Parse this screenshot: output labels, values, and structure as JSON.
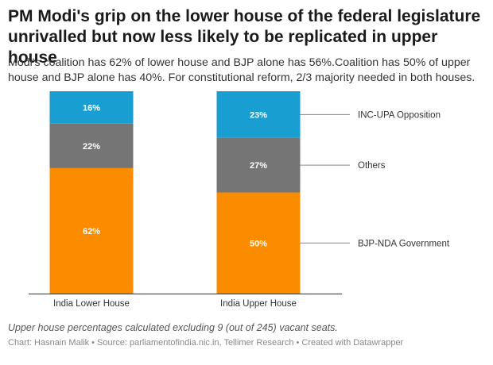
{
  "header": {
    "title": "PM Modi's grip on the lower house of the federal legislature unrivalled but now less likely to be replicated in upper house",
    "subtitle": "Modi's coalition has 62% of lower house and BJP alone has 56%.Coalition has 50% of upper house and BJP alone has 40%. For constitutional reform, 2/3 majority needed in both houses."
  },
  "chart_data": {
    "type": "bar",
    "stacked": true,
    "categories": [
      "India Lower House",
      "India Upper House"
    ],
    "series": [
      {
        "name": "BJP-NDA Government",
        "values": [
          62,
          50
        ],
        "color": "#fb8c00"
      },
      {
        "name": "Others",
        "values": [
          22,
          27
        ],
        "color": "#757575"
      },
      {
        "name": "INC-UPA Opposition",
        "values": [
          16,
          23
        ],
        "color": "#199ed2"
      }
    ],
    "value_format": "{v}%",
    "ylim": [
      0,
      100
    ],
    "legend_placement": "right",
    "title": "",
    "xlabel": "",
    "ylabel": ""
  },
  "footer": {
    "note": "Upper house percentages calculated excluding 9 (out of 245) vacant seats.",
    "source": "Chart: Hasnain Malik • Source: parliamentofindia.nic.in, Tellimer Research • Created with Datawrapper"
  }
}
